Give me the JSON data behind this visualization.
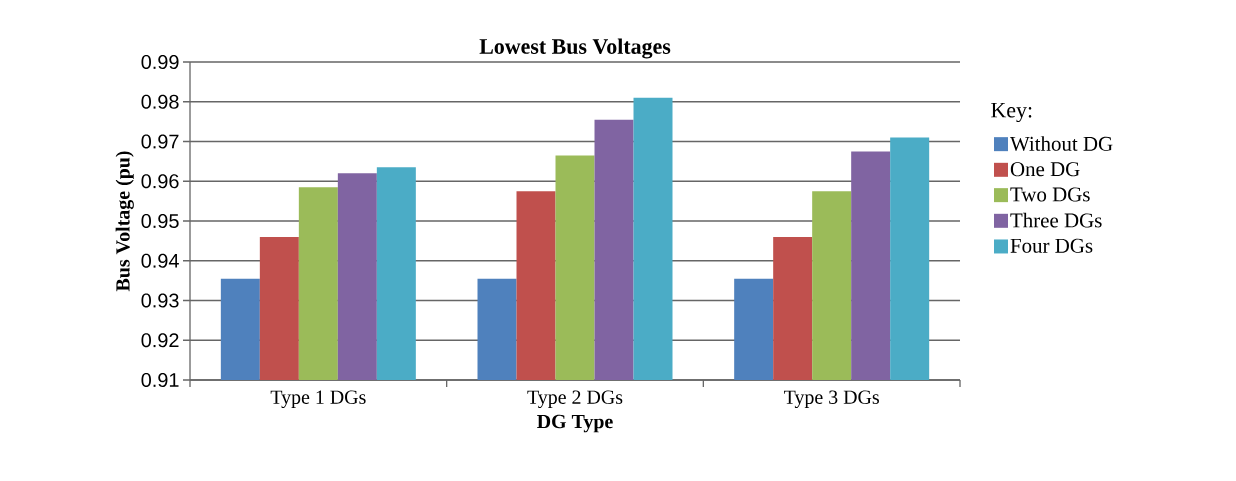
{
  "chart_data": {
    "type": "bar",
    "title": "Lowest Bus Voltages",
    "xlabel": "DG Type",
    "ylabel": "Bus Voltage (pu)",
    "legend_title": "Key:",
    "categories": [
      "Type 1 DGs",
      "Type 2 DGs",
      "Type 3 DGs"
    ],
    "series": [
      {
        "name": "Without DG",
        "color": "#4f81bd",
        "values": [
          0.9355,
          0.9355,
          0.9355
        ]
      },
      {
        "name": "One DG",
        "color": "#c0504d",
        "values": [
          0.946,
          0.9575,
          0.946
        ]
      },
      {
        "name": "Two DGs",
        "color": "#9bbb59",
        "values": [
          0.9585,
          0.9665,
          0.9575
        ]
      },
      {
        "name": "Three DGs",
        "color": "#8064a2",
        "values": [
          0.962,
          0.9755,
          0.9675
        ]
      },
      {
        "name": "Four DGs",
        "color": "#4bacc6",
        "values": [
          0.9635,
          0.981,
          0.971
        ]
      }
    ],
    "ylim": [
      0.91,
      0.99
    ],
    "yticks": [
      0.91,
      0.92,
      0.93,
      0.94,
      0.95,
      0.96,
      0.97,
      0.98,
      0.99
    ],
    "grid": "y",
    "legend": "right"
  }
}
